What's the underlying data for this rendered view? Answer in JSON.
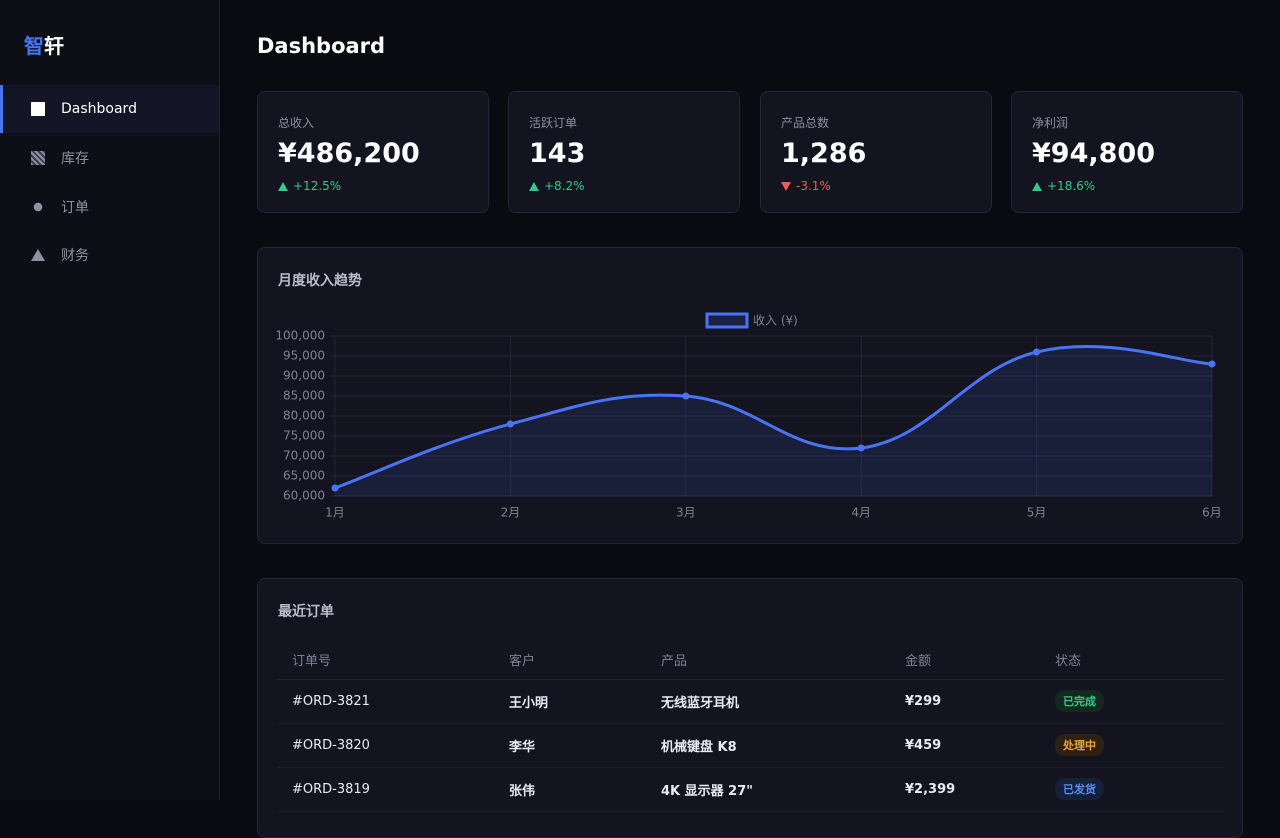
{
  "brand": [
    "智",
    "轩"
  ],
  "nav": [
    "Dashboard",
    "库存",
    "订单",
    "财务"
  ],
  "header": {
    "title": "Dashboard"
  },
  "stats": [
    {
      "label": "总收入",
      "value": "¥486,200",
      "change": "+12.5%"
    },
    {
      "label": "活跃订单",
      "value": "143",
      "change": "+8.2%"
    },
    {
      "label": "产品总数",
      "value": "1,286",
      "change": "-3.1%"
    },
    {
      "label": "净利润",
      "value": "¥94,800",
      "change": "+18.6%"
    }
  ],
  "chart_data": {
    "type": "line",
    "title": "月度收入趋势",
    "categories": [
      "1月",
      "2月",
      "3月",
      "4月",
      "5月",
      "6月"
    ],
    "series": [
      {
        "name": "收入 (¥)",
        "color": "#4a74f5",
        "values": [
          62000,
          78000,
          85000,
          72000,
          96000,
          93000
        ]
      }
    ],
    "ylim": [
      60000,
      100000
    ],
    "yticks": [
      {
        "value": 60000,
        "label": "60,000"
      },
      {
        "value": 65000,
        "label": "65,000"
      },
      {
        "value": 70000,
        "label": "70,000"
      },
      {
        "value": 75000,
        "label": "75,000"
      },
      {
        "value": 80000,
        "label": "80,000"
      },
      {
        "value": 85000,
        "label": "85,000"
      },
      {
        "value": 90000,
        "label": "90,000"
      },
      {
        "value": 95000,
        "label": "95,000"
      },
      {
        "value": 100000,
        "label": "100,000"
      }
    ],
    "grid": true,
    "legend": "top",
    "fill": true
  },
  "orders": {
    "title": "最近订单",
    "headers": [
      "订单号",
      "客户",
      "产品",
      "金额",
      "状态"
    ],
    "rows": [
      [
        "#ORD-3821",
        "王小明",
        "无线蓝牙耳机",
        "¥299",
        "已完成"
      ],
      [
        "#ORD-3820",
        "李华",
        "机械键盘 K8",
        "¥459",
        "处理中"
      ],
      [
        "#ORD-3819",
        "张伟",
        "4K 显示器 27\"",
        "¥2,399",
        "已发货"
      ]
    ]
  }
}
